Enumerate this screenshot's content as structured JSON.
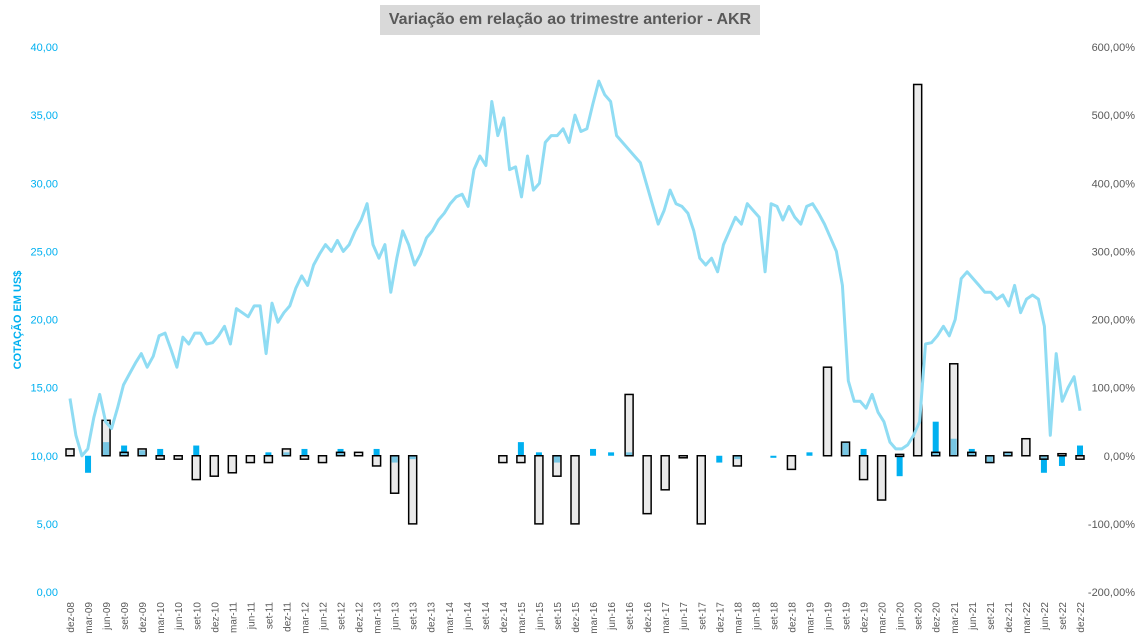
{
  "chart_data": {
    "type": "bar+line",
    "title": "Variação em relação ao trimestre anterior - AKR",
    "ylabel": "COTAÇÃO EM US$",
    "ylim_left": [
      0,
      40
    ],
    "ylim_right": [
      -200,
      600
    ],
    "left_ticks": [
      "0,00",
      "5,00",
      "10,00",
      "15,00",
      "20,00",
      "25,00",
      "30,00",
      "35,00",
      "40,00"
    ],
    "right_ticks": [
      "-200,00%",
      "-100,00%",
      "0,00%",
      "100,00%",
      "200,00%",
      "300,00%",
      "400,00%",
      "500,00%",
      "600,00%"
    ],
    "colors": {
      "price_line": "#8fdcf3",
      "blue_bar": "#00b0f0",
      "outline_bar_fill": "#d9d9d9",
      "outline_bar_stroke": "#000000"
    },
    "categories": [
      "dez-08",
      "mar-09",
      "jun-09",
      "set-09",
      "dez-09",
      "mar-10",
      "jun-10",
      "set-10",
      "dez-10",
      "mar-11",
      "jun-11",
      "set-11",
      "dez-11",
      "mar-12",
      "jun-12",
      "set-12",
      "dez-12",
      "mar-13",
      "jun-13",
      "set-13",
      "dez-13",
      "mar-14",
      "jun-14",
      "set-14",
      "dez-14",
      "mar-15",
      "jun-15",
      "set-15",
      "dez-15",
      "mar-16",
      "jun-16",
      "set-16",
      "dez-16",
      "mar-17",
      "jun-17",
      "set-17",
      "dez-17",
      "mar-18",
      "jun-18",
      "set-18",
      "dez-18",
      "mar-19",
      "jun-19",
      "set-19",
      "dez-19",
      "mar-20",
      "jun-20",
      "set-20",
      "dez-20",
      "mar-21",
      "jun-21",
      "set-21",
      "dez-21",
      "mar-22",
      "jun-22",
      "set-22",
      "dez-22"
    ],
    "price_series": [
      14.2,
      11.5,
      10.0,
      10.5,
      12.8,
      14.5,
      12.5,
      12.0,
      13.5,
      15.2,
      16.0,
      16.8,
      17.5,
      16.5,
      17.3,
      18.8,
      19.0,
      17.8,
      16.5,
      18.7,
      18.2,
      19.0,
      19.0,
      18.2,
      18.3,
      18.8,
      19.5,
      18.2,
      20.8,
      20.5,
      20.2,
      21.0,
      21.0,
      17.5,
      21.2,
      19.8,
      20.5,
      21.0,
      22.3,
      23.2,
      22.5,
      24.0,
      24.8,
      25.5,
      25.0,
      25.8,
      25.0,
      25.5,
      26.5,
      27.3,
      28.5,
      25.5,
      24.5,
      25.5,
      22.0,
      24.5,
      26.5,
      25.5,
      24.0,
      24.8,
      26.0,
      26.5,
      27.3,
      27.8,
      28.5,
      29.0,
      29.2,
      28.3,
      31.0,
      32.0,
      31.3,
      36.0,
      33.5,
      34.8,
      31.0,
      31.2,
      29.0,
      32.0,
      29.5,
      30.0,
      33.0,
      33.5,
      33.5,
      34.0,
      33.0,
      35.0,
      33.8,
      34.0,
      35.8,
      37.5,
      36.5,
      36.0,
      33.5,
      33.0,
      32.5,
      32.0,
      31.5,
      30.0,
      28.5,
      27.0,
      28.0,
      29.5,
      28.5,
      28.3,
      27.8,
      26.5,
      24.5,
      24.0,
      24.5,
      23.5,
      25.5,
      26.5,
      27.5,
      27.0,
      28.5,
      28.0,
      27.5,
      23.5,
      28.5,
      28.3,
      27.3,
      28.3,
      27.5,
      27.0,
      28.3,
      28.5,
      27.8,
      27.0,
      26.0,
      25.0,
      22.5,
      15.5,
      14.0,
      14.0,
      13.5,
      14.5,
      13.2,
      12.5,
      11.0,
      10.5,
      10.5,
      10.8,
      11.5,
      12.5,
      18.2,
      18.3,
      18.8,
      19.5,
      18.8,
      20.0,
      23.0,
      23.5,
      23.0,
      22.5,
      22.0,
      22.0,
      21.5,
      21.8,
      21.0,
      22.5,
      20.5,
      21.5,
      21.8,
      21.5,
      19.5,
      11.5,
      17.5,
      14.0,
      15.0,
      15.8,
      13.3
    ],
    "blue_bars_pct": [
      0,
      -25,
      20,
      15,
      8,
      10,
      0,
      15,
      0,
      0,
      0,
      5,
      5,
      10,
      0,
      10,
      0,
      10,
      -10,
      -5,
      0,
      0,
      0,
      0,
      0,
      20,
      5,
      -10,
      0,
      10,
      5,
      5,
      0,
      0,
      0,
      0,
      -10,
      -5,
      0,
      -3,
      0,
      5,
      0,
      20,
      10,
      0,
      -30,
      0,
      50,
      25,
      10,
      -10,
      5,
      0,
      -25,
      -15,
      15
    ],
    "outline_bars_pct": [
      10,
      0,
      52,
      5,
      10,
      -5,
      -5,
      -35,
      -30,
      -25,
      -10,
      -10,
      10,
      -5,
      -10,
      5,
      5,
      -15,
      -55,
      -100,
      0,
      0,
      0,
      0,
      -10,
      -10,
      -100,
      -30,
      -100,
      0,
      0,
      90,
      -85,
      -50,
      -3,
      -100,
      0,
      -15,
      0,
      0,
      -20,
      0,
      130,
      20,
      -35,
      -65,
      2,
      545,
      5,
      135,
      5,
      -10,
      5,
      25,
      -5,
      3,
      -5
    ]
  }
}
